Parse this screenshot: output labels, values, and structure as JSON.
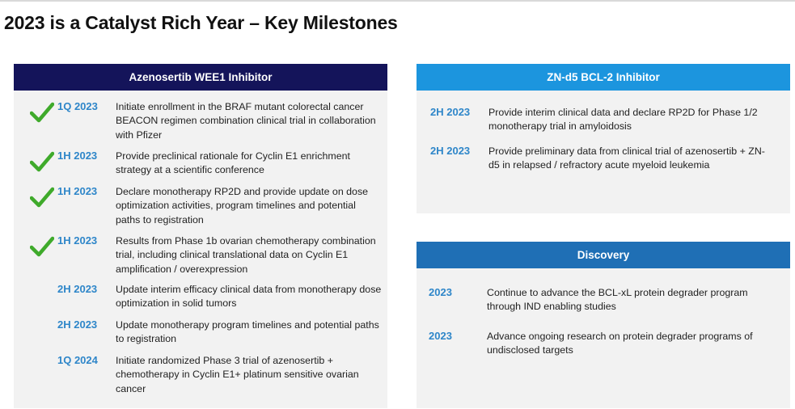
{
  "title": "2023 is a Catalyst Rich Year – Key Milestones",
  "colors": {
    "navy_header": "#14145a",
    "sky_header": "#1c95de",
    "blue_header": "#1f6fb5",
    "date_blue": "#2e86c9",
    "check_green": "#3faa2b",
    "panel_bg": "#f2f2f2"
  },
  "left_panel": {
    "header": "Azenosertib WEE1 Inhibitor",
    "items": [
      {
        "checked": true,
        "icon": "check-icon",
        "date": "1Q 2023",
        "text": "Initiate enrollment in the BRAF mutant colorectal cancer BEACON regimen combination clinical trial in collaboration with Pfizer"
      },
      {
        "checked": true,
        "icon": "check-icon",
        "date": "1H 2023",
        "text": "Provide preclinical rationale for Cyclin E1 enrichment strategy at a scientific conference"
      },
      {
        "checked": true,
        "icon": "check-icon",
        "date": "1H 2023",
        "text": "Declare monotherapy RP2D and provide update on dose optimization activities, program timelines and potential paths to registration"
      },
      {
        "checked": true,
        "icon": "check-icon",
        "date": "1H 2023",
        "text": "Results from Phase 1b ovarian chemotherapy combination trial, including clinical translational data on Cyclin E1 amplification / overexpression"
      },
      {
        "checked": false,
        "date": "2H 2023",
        "text": "Update interim efficacy clinical data from monotherapy dose optimization in solid tumors"
      },
      {
        "checked": false,
        "date": "2H 2023",
        "text": "Update monotherapy program timelines and potential paths to registration"
      },
      {
        "checked": false,
        "date": "1Q 2024",
        "text": "Initiate randomized Phase 3 trial of azenosertib + chemotherapy in Cyclin E1+ platinum sensitive ovarian cancer"
      }
    ]
  },
  "right_top_panel": {
    "header": "ZN-d5 BCL-2 Inhibitor",
    "items": [
      {
        "date": "2H 2023",
        "text": "Provide interim clinical data and declare RP2D for Phase 1/2 monotherapy trial in amyloidosis"
      },
      {
        "date": "2H 2023",
        "text": "Provide preliminary data from clinical trial of azenosertib + ZN-d5 in relapsed / refractory acute myeloid leukemia"
      }
    ]
  },
  "right_bottom_panel": {
    "header": "Discovery",
    "items": [
      {
        "date": "2023",
        "text": "Continue to advance the BCL-xL protein degrader program through IND enabling studies"
      },
      {
        "date": "2023",
        "text": "Advance ongoing research on protein degrader programs of undisclosed targets"
      }
    ]
  }
}
